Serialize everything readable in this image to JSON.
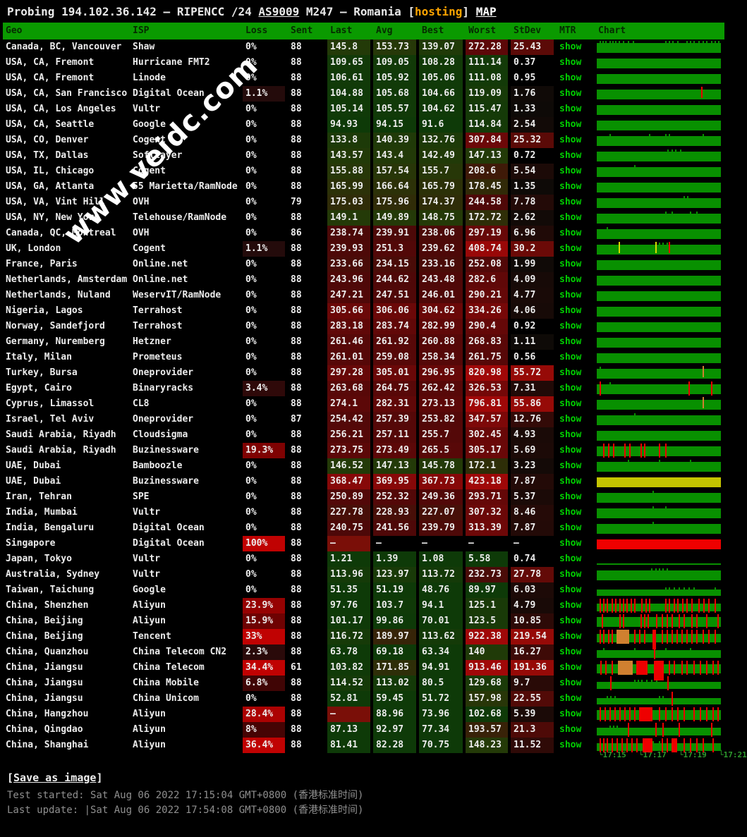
{
  "title": {
    "probing": "Probing 194.102.36.142 – RIPENCC /24 ",
    "as_link": "AS9009",
    "mid": " M247 – Romania ",
    "bracket_open": "[",
    "hosting": "hosting",
    "bracket_close": "] ",
    "map_link": "MAP"
  },
  "watermark": "www.veidc.com",
  "columns": [
    "Geo",
    "ISP",
    "Loss",
    "Sent",
    "Last",
    "Avg",
    "Best",
    "Worst",
    "StDev",
    "MTR",
    "Chart"
  ],
  "mtr_label": "show",
  "axis_labels": [
    "└17:15",
    "└17:17",
    "└17:19",
    "└17:21"
  ],
  "footer": {
    "bracket_open": "[",
    "save_label": "Save as image",
    "bracket_close": "]",
    "test_started": "Test started: Sat Aug 06 2022 17:15:04 GMT+0800 (香港标准时间)",
    "last_update": "Last update: |Sat Aug 06 2022 17:54:08 GMT+0800 (香港标准时间)"
  },
  "colors": {
    "header_green": "#0a9a00",
    "chart_green": "#089000",
    "chart_yellow": "#c4c400",
    "chart_red": "#ee0000",
    "chart_orange": "#d08030",
    "link_green": "#00d000",
    "hosting_orange": "#ffa500",
    "loss_red_max": "#c00000",
    "status_gray": "#8f8f8f"
  },
  "rows": [
    {
      "geo": "Canada, BC, Vancouver",
      "isp": "Shaw",
      "loss": "0%",
      "sent": "88",
      "last": "145.8",
      "avg": "153.73",
      "best": "139.07",
      "worst": "272.28",
      "stdev": "25.43",
      "chart": {
        "s": [
          0.02,
          0.045,
          0.07,
          0.1,
          0.125,
          0.15,
          0.175,
          0.21,
          0.25,
          0.29,
          0.55,
          0.58,
          0.61,
          0.65,
          0.72,
          0.75,
          0.78,
          0.82,
          0.85,
          0.88,
          0.92,
          0.95,
          0.98
        ]
      }
    },
    {
      "geo": "USA, CA, Fremont",
      "isp": "Hurricane FMT2",
      "loss": "0%",
      "sent": "88",
      "last": "109.65",
      "avg": "109.05",
      "best": "108.28",
      "worst": "111.14",
      "stdev": "0.37",
      "chart": {}
    },
    {
      "geo": "USA, CA, Fremont",
      "isp": "Linode",
      "loss": "0%",
      "sent": "88",
      "last": "106.61",
      "avg": "105.92",
      "best": "105.06",
      "worst": "111.08",
      "stdev": "0.95",
      "chart": {}
    },
    {
      "geo": "USA, CA, San Francisco",
      "isp": "Digital Ocean",
      "loss": "1.1%",
      "sent": "88",
      "last": "104.88",
      "avg": "105.68",
      "best": "104.66",
      "worst": "119.09",
      "stdev": "1.76",
      "chart": {
        "u": [
          [
            0.84,
            "red"
          ]
        ]
      }
    },
    {
      "geo": "USA, CA, Los Angeles",
      "isp": "Vultr",
      "loss": "0%",
      "sent": "88",
      "last": "105.14",
      "avg": "105.57",
      "best": "104.62",
      "worst": "115.47",
      "stdev": "1.33",
      "chart": {}
    },
    {
      "geo": "USA, CA, Seattle",
      "isp": "Google",
      "loss": "0%",
      "sent": "88",
      "last": "94.93",
      "avg": "94.15",
      "best": "91.6",
      "worst": "114.84",
      "stdev": "2.54",
      "chart": {}
    },
    {
      "geo": "USA, CO, Denver",
      "isp": "Cogent",
      "loss": "0%",
      "sent": "88",
      "last": "133.8",
      "avg": "140.39",
      "best": "132.76",
      "worst": "307.84",
      "stdev": "25.32",
      "chart": {
        "s": [
          0.1,
          0.42,
          0.55,
          0.58,
          0.85
        ]
      }
    },
    {
      "geo": "USA, TX, Dallas",
      "isp": "Softlayer",
      "loss": "0%",
      "sent": "88",
      "last": "143.57",
      "avg": "143.4",
      "best": "142.49",
      "worst": "147.13",
      "stdev": "0.72",
      "chart": {
        "s": [
          0.57,
          0.6,
          0.63,
          0.67
        ]
      }
    },
    {
      "geo": "USA, IL, Chicago",
      "isp": "Cogent",
      "loss": "0%",
      "sent": "88",
      "last": "155.88",
      "avg": "157.54",
      "best": "155.7",
      "worst": "208.6",
      "stdev": "5.54",
      "chart": {
        "s": [
          0.3
        ]
      }
    },
    {
      "geo": "USA, GA, Atlanta",
      "isp": "55 Marietta/RamNode",
      "loss": "0%",
      "sent": "88",
      "last": "165.99",
      "avg": "166.64",
      "best": "165.79",
      "worst": "178.45",
      "stdev": "1.35",
      "chart": {}
    },
    {
      "geo": "USA, VA, Vint Hill",
      "isp": "OVH",
      "loss": "0%",
      "sent": "79",
      "last": "175.03",
      "avg": "175.96",
      "best": "174.37",
      "worst": "244.58",
      "stdev": "7.78",
      "chart": {
        "s": [
          0.7,
          0.73
        ]
      }
    },
    {
      "geo": "USA, NY, New York",
      "isp": "Telehouse/RamNode",
      "loss": "0%",
      "sent": "88",
      "last": "149.1",
      "avg": "149.89",
      "best": "148.75",
      "worst": "172.72",
      "stdev": "2.62",
      "chart": {
        "s": [
          0.55,
          0.6,
          0.75,
          0.8
        ]
      }
    },
    {
      "geo": "Canada, QC, Montreal",
      "isp": "OVH",
      "loss": "0%",
      "sent": "86",
      "last": "238.74",
      "avg": "239.91",
      "best": "238.06",
      "worst": "297.19",
      "stdev": "6.96",
      "chart": {
        "s": [
          0.08
        ]
      }
    },
    {
      "geo": "UK, London",
      "isp": "Cogent",
      "loss": "1.1%",
      "sent": "88",
      "last": "239.93",
      "avg": "251.3",
      "best": "239.62",
      "worst": "408.74",
      "stdev": "30.2",
      "chart": {
        "u": [
          [
            0.175,
            "yellow"
          ],
          [
            0.47,
            "yellow"
          ],
          [
            0.58,
            "red"
          ]
        ],
        "s": [
          0.5,
          0.53,
          0.56
        ]
      }
    },
    {
      "geo": "France, Paris",
      "isp": "Online.net",
      "loss": "0%",
      "sent": "88",
      "last": "233.66",
      "avg": "234.15",
      "best": "233.16",
      "worst": "252.08",
      "stdev": "1.99",
      "chart": {}
    },
    {
      "geo": "Netherlands, Amsterdam",
      "isp": "Online.net",
      "loss": "0%",
      "sent": "88",
      "last": "243.96",
      "avg": "244.62",
      "best": "243.48",
      "worst": "282.6",
      "stdev": "4.09",
      "chart": {}
    },
    {
      "geo": "Netherlands, Nuland",
      "isp": "WeservIT/RamNode",
      "loss": "0%",
      "sent": "88",
      "last": "247.21",
      "avg": "247.51",
      "best": "246.01",
      "worst": "290.21",
      "stdev": "4.77",
      "chart": {}
    },
    {
      "geo": "Nigeria, Lagos",
      "isp": "Terrahost",
      "loss": "0%",
      "sent": "88",
      "last": "305.66",
      "avg": "306.06",
      "best": "304.62",
      "worst": "334.26",
      "stdev": "4.06",
      "chart": {}
    },
    {
      "geo": "Norway, Sandefjord",
      "isp": "Terrahost",
      "loss": "0%",
      "sent": "88",
      "last": "283.18",
      "avg": "283.74",
      "best": "282.99",
      "worst": "290.4",
      "stdev": "0.92",
      "chart": {}
    },
    {
      "geo": "Germany, Nuremberg",
      "isp": "Hetzner",
      "loss": "0%",
      "sent": "88",
      "last": "261.46",
      "avg": "261.92",
      "best": "260.88",
      "worst": "268.83",
      "stdev": "1.11",
      "chart": {}
    },
    {
      "geo": "Italy, Milan",
      "isp": "Prometeus",
      "loss": "0%",
      "sent": "88",
      "last": "261.01",
      "avg": "259.08",
      "best": "258.34",
      "worst": "261.75",
      "stdev": "0.56",
      "chart": {}
    },
    {
      "geo": "Turkey, Bursa",
      "isp": "Oneprovider",
      "loss": "0%",
      "sent": "88",
      "last": "297.28",
      "avg": "305.01",
      "best": "296.95",
      "worst": "820.98",
      "stdev": "55.72",
      "chart": {
        "u": [
          [
            0.85,
            "orange"
          ]
        ],
        "s": [
          0.02
        ]
      }
    },
    {
      "geo": "Egypt, Cairo",
      "isp": "Binaryracks",
      "loss": "3.4%",
      "sent": "88",
      "last": "263.68",
      "avg": "264.75",
      "best": "262.42",
      "worst": "326.53",
      "stdev": "7.31",
      "chart": {
        "t": [
          0.02,
          0.74,
          0.92
        ],
        "s": [
          0.1
        ]
      }
    },
    {
      "geo": "Cyprus, Limassol",
      "isp": "CL8",
      "loss": "0%",
      "sent": "88",
      "last": "274.1",
      "avg": "282.31",
      "best": "273.13",
      "worst": "796.81",
      "stdev": "55.86",
      "chart": {
        "u": [
          [
            0.85,
            "orange"
          ]
        ]
      }
    },
    {
      "geo": "Israel, Tel Aviv",
      "isp": "Oneprovider",
      "loss": "0%",
      "sent": "87",
      "last": "254.42",
      "avg": "257.39",
      "best": "253.82",
      "worst": "347.57",
      "stdev": "12.76",
      "chart": {
        "s": [
          0.3
        ]
      }
    },
    {
      "geo": "Saudi Arabia, Riyadh",
      "isp": "Cloudsigma",
      "loss": "0%",
      "sent": "88",
      "last": "256.21",
      "avg": "257.11",
      "best": "255.7",
      "worst": "302.45",
      "stdev": "4.93",
      "chart": {}
    },
    {
      "geo": "Saudi Arabia, Riyadh",
      "isp": "Buzinessware",
      "loss": "19.3%",
      "sent": "88",
      "last": "273.75",
      "avg": "273.49",
      "best": "265.5",
      "worst": "305.17",
      "stdev": "5.69",
      "chart": {
        "t": [
          0.05,
          0.09,
          0.13,
          0.22,
          0.26,
          0.35,
          0.38,
          0.5,
          0.55
        ]
      }
    },
    {
      "geo": "UAE, Dubai",
      "isp": "Bamboozle",
      "loss": "0%",
      "sent": "88",
      "last": "146.52",
      "avg": "147.13",
      "best": "145.78",
      "worst": "172.1",
      "stdev": "3.23",
      "chart": {
        "s": [
          0.25,
          0.5,
          0.75
        ]
      }
    },
    {
      "geo": "UAE, Dubai",
      "isp": "Buzinessware",
      "loss": "0%",
      "sent": "88",
      "last": "368.47",
      "avg": "369.95",
      "best": "367.73",
      "worst": "423.18",
      "stdev": "7.87",
      "chart": {
        "b": "y"
      }
    },
    {
      "geo": "Iran, Tehran",
      "isp": "SPE",
      "loss": "0%",
      "sent": "88",
      "last": "250.89",
      "avg": "252.32",
      "best": "249.36",
      "worst": "293.71",
      "stdev": "5.37",
      "chart": {
        "s": [
          0.45
        ]
      }
    },
    {
      "geo": "India, Mumbai",
      "isp": "Vultr",
      "loss": "0%",
      "sent": "88",
      "last": "227.78",
      "avg": "228.93",
      "best": "227.07",
      "worst": "307.32",
      "stdev": "8.46",
      "chart": {
        "s": [
          0.45,
          0.55
        ]
      }
    },
    {
      "geo": "India, Bengaluru",
      "isp": "Digital Ocean",
      "loss": "0%",
      "sent": "88",
      "last": "240.75",
      "avg": "241.56",
      "best": "239.79",
      "worst": "313.39",
      "stdev": "7.87",
      "chart": {
        "s": [
          0.45
        ]
      }
    },
    {
      "geo": "Singapore",
      "isp": "Digital Ocean",
      "loss": "100%",
      "sent": "88",
      "last": "–",
      "avg": "–",
      "best": "–",
      "worst": "–",
      "stdev": "–",
      "chart": {
        "b": "r"
      }
    },
    {
      "geo": "Japan, Tokyo",
      "isp": "Vultr",
      "loss": "0%",
      "sent": "88",
      "last": "1.21",
      "avg": "1.39",
      "best": "1.08",
      "worst": "5.58",
      "stdev": "0.74",
      "chart": {
        "h": 0.14
      }
    },
    {
      "geo": "Australia, Sydney",
      "isp": "Vultr",
      "loss": "0%",
      "sent": "88",
      "last": "113.96",
      "avg": "123.97",
      "best": "113.72",
      "worst": "232.73",
      "stdev": "27.78",
      "chart": {
        "s": [
          0.44,
          0.47,
          0.5,
          0.53,
          0.56
        ]
      }
    },
    {
      "geo": "Taiwan, Taichung",
      "isp": "Google",
      "loss": "0%",
      "sent": "88",
      "last": "51.35",
      "avg": "51.19",
      "best": "48.76",
      "worst": "89.97",
      "stdev": "6.03",
      "chart": {
        "h": 0.65,
        "s": [
          0.55,
          0.58,
          0.62,
          0.66,
          0.7,
          0.74,
          0.78,
          0.95
        ]
      }
    },
    {
      "geo": "China, Shenzhen",
      "isp": "Aliyun",
      "loss": "23.9%",
      "sent": "88",
      "last": "97.76",
      "avg": "103.7",
      "best": "94.1",
      "worst": "125.1",
      "stdev": "4.79",
      "chart": {
        "h": 0.8,
        "t": [
          0.02,
          0.05,
          0.08,
          0.12,
          0.15,
          0.18,
          0.21,
          0.24,
          0.27,
          0.3,
          0.36,
          0.39,
          0.42,
          0.55,
          0.58,
          0.62,
          0.65,
          0.69,
          0.72,
          0.76,
          0.82,
          0.86,
          0.9,
          0.95
        ]
      }
    },
    {
      "geo": "China, Beijing",
      "isp": "Aliyun",
      "loss": "15.9%",
      "sent": "88",
      "last": "101.17",
      "avg": "99.86",
      "best": "70.01",
      "worst": "123.5",
      "stdev": "10.85",
      "chart": {
        "t": [
          0.04,
          0.18,
          0.21,
          0.35,
          0.38,
          0.41,
          0.48,
          0.52,
          0.56,
          0.6,
          0.66,
          0.7,
          0.76,
          0.8,
          0.88,
          0.97
        ]
      }
    },
    {
      "geo": "China, Beijing",
      "isp": "Tencent",
      "loss": "33%",
      "sent": "88",
      "last": "116.72",
      "avg": "189.97",
      "best": "113.62",
      "worst": "922.38",
      "stdev": "219.54",
      "chart": {
        "h": 0.85,
        "t": [
          0.02,
          0.05,
          0.09,
          0.12,
          0.3,
          0.34,
          0.38,
          0.52,
          0.56,
          0.6,
          0.64,
          0.68,
          0.72,
          0.76,
          0.8,
          0.85,
          0.9,
          0.95
        ],
        "k": [
          [
            0.16,
            0.1,
            "orange",
            false
          ],
          [
            0.45,
            0.03,
            "red",
            true
          ]
        ]
      }
    },
    {
      "geo": "China, Quanzhou",
      "isp": "China Telecom CN2",
      "loss": "2.3%",
      "sent": "88",
      "last": "63.78",
      "avg": "69.18",
      "best": "63.34",
      "worst": "140",
      "stdev": "16.27",
      "chart": {
        "h": 0.75,
        "s": [
          0.05,
          0.3,
          0.55,
          0.75
        ],
        "t": [
          0.46
        ]
      }
    },
    {
      "geo": "China, Jiangsu",
      "isp": "China Telecom",
      "loss": "34.4%",
      "sent": "61",
      "last": "103.82",
      "avg": "171.85",
      "best": "94.91",
      "worst": "913.46",
      "stdev": "191.36",
      "chart": {
        "h": 0.9,
        "t": [
          0.03,
          0.07,
          0.12,
          0.58,
          0.62,
          0.68,
          0.72,
          0.78,
          0.83,
          0.88,
          0.93,
          0.97
        ],
        "k": [
          [
            0.17,
            0.12,
            "orange",
            false
          ],
          [
            0.32,
            0.09,
            "red",
            false
          ],
          [
            0.46,
            0.08,
            "red",
            true
          ]
        ]
      }
    },
    {
      "geo": "China, Jiangsu",
      "isp": "China Mobile",
      "loss": "6.8%",
      "sent": "88",
      "last": "114.52",
      "avg": "113.02",
      "best": "80.5",
      "worst": "129.68",
      "stdev": "9.7",
      "chart": {
        "h": 0.7,
        "s": [
          0.3,
          0.33,
          0.36,
          0.4,
          0.44,
          0.48
        ],
        "t": [
          0.11,
          0.57
        ]
      }
    },
    {
      "geo": "China, Jiangsu",
      "isp": "China Unicom",
      "loss": "0%",
      "sent": "88",
      "last": "52.81",
      "avg": "59.45",
      "best": "51.72",
      "worst": "157.98",
      "stdev": "22.55",
      "chart": {
        "h": 0.65,
        "s": [
          0.08,
          0.11,
          0.14,
          0.5,
          0.53
        ],
        "t": [
          0.6
        ]
      }
    },
    {
      "geo": "China, Hangzhou",
      "isp": "Aliyun",
      "loss": "28.4%",
      "sent": "88",
      "last": "–",
      "avg": "88.96",
      "best": "73.96",
      "worst": "102.68",
      "stdev": "5.39",
      "chart": {
        "t": [
          0.02,
          0.06,
          0.1,
          0.14,
          0.18,
          0.22,
          0.26,
          0.3,
          0.5,
          0.55,
          0.6,
          0.65,
          0.7,
          0.78,
          0.83,
          0.88,
          0.93,
          0.97
        ],
        "k": [
          [
            0.34,
            0.11,
            "red",
            false
          ]
        ]
      }
    },
    {
      "geo": "China, Qingdao",
      "isp": "Aliyun",
      "loss": "8%",
      "sent": "88",
      "last": "87.13",
      "avg": "92.97",
      "best": "77.34",
      "worst": "193.57",
      "stdev": "21.3",
      "chart": {
        "h": 0.8,
        "s": [
          0.1,
          0.13,
          0.16
        ],
        "t": [
          0.25,
          0.47,
          0.53,
          0.66,
          0.92
        ]
      }
    },
    {
      "geo": "China, Shanghai",
      "isp": "Aliyun",
      "loss": "36.4%",
      "sent": "88",
      "last": "81.41",
      "avg": "82.28",
      "best": "70.75",
      "worst": "148.23",
      "stdev": "11.52",
      "chart": {
        "h": 0.75,
        "s": [
          0.45,
          0.5
        ],
        "t": [
          0.02,
          0.05,
          0.08,
          0.12,
          0.16,
          0.2,
          0.24,
          0.28,
          0.32,
          0.52,
          0.56,
          0.7,
          0.75,
          0.8,
          0.85,
          0.93
        ],
        "k": [
          [
            0.37,
            0.08,
            "red",
            false
          ],
          [
            0.6,
            0.05,
            "red",
            false
          ]
        ]
      }
    }
  ]
}
